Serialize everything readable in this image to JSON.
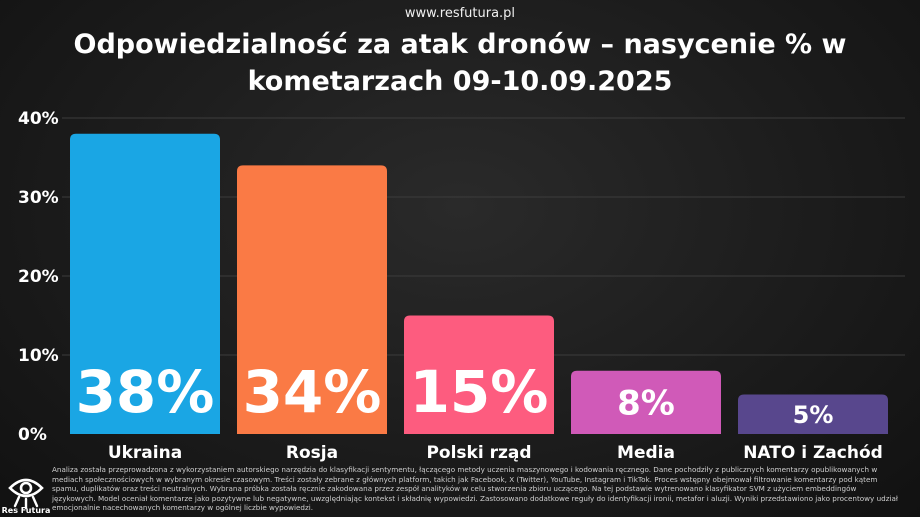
{
  "header": {
    "site": "www.resfutura.pl",
    "title": "Odpowiedzialność za atak dronów – nasycenie % w kometarzach 09-10.09.2025"
  },
  "chart_data": {
    "type": "bar",
    "title": "Odpowiedzialność za atak dronów – nasycenie % w kometarzach 09-10.09.2025",
    "categories": [
      "Ukraina",
      "Rosja",
      "Polski rząd",
      "Media",
      "NATO i Zachód"
    ],
    "values": [
      38,
      34,
      15,
      8,
      5
    ],
    "value_labels": [
      "38%",
      "34%",
      "15%",
      "8%",
      "5%"
    ],
    "colors": [
      "#1aa6e4",
      "#fa7a45",
      "#fd5c7f",
      "#d05ab8",
      "#58478d"
    ],
    "ylim": [
      0,
      40
    ],
    "yticks": [
      0,
      10,
      20,
      30,
      40
    ],
    "ytick_labels": [
      "0%",
      "10%",
      "20%",
      "30%",
      "40%"
    ],
    "xlabel": "",
    "ylabel": "",
    "grid": true
  },
  "footer": {
    "brand": "Res Futura",
    "note": "Analiza została przeprowadzona z wykorzystaniem autorskiego narzędzia do klasyfikacji sentymentu, łączącego metody uczenia maszynowego i kodowania ręcznego. Dane pochodziły z publicznych komentarzy opublikowanych w mediach społecznościowych w wybranym okresie czasowym. Treści zostały zebrane z głównych platform, takich jak Facebook, X (Twitter), YouTube, Instagram i TikTok. Proces wstępny obejmował filtrowanie komentarzy pod kątem spamu, duplikatów oraz treści neutralnych. Wybrana próbka została ręcznie zakodowana przez zespół analityków w celu stworzenia zbioru uczącego. Na tej podstawie wytrenowano klasyfikator SVM z użyciem embeddingów językowych. Model oceniał komentarze jako pozytywne lub negatywne, uwzględniając kontekst i składnię wypowiedzi. Zastosowano dodatkowe reguły do identyfikacji ironii, metafor i aluzji. Wyniki przedstawiono jako procentowy udział emocjonalnie nacechowanych komentarzy w ogólnej liczbie wypowiedzi."
  }
}
